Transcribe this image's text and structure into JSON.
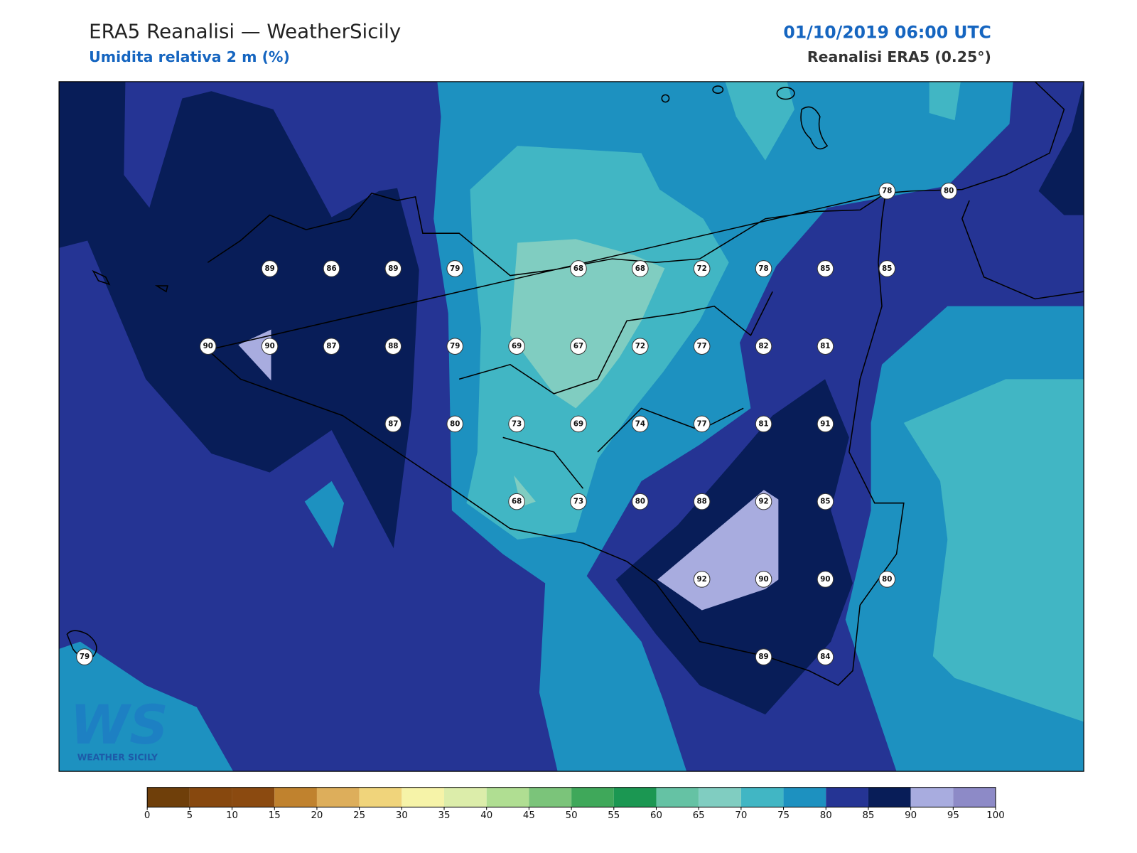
{
  "header": {
    "title": "ERA5 Reanalisi — WeatherSicily",
    "subtitle": "Umidita relativa 2 m (%)",
    "date": "01/10/2019 06:00 UTC",
    "source": "Reanalisi ERA5 (0.25°)"
  },
  "stations": [
    [
      null,
      null,
      null,
      null,
      null,
      null,
      null,
      null,
      null,
      null,
      null,
      null,
      null,
      78,
      80
    ],
    [
      null,
      null,
      null,
      89,
      86,
      89,
      79,
      null,
      68,
      68,
      72,
      78,
      85,
      85,
      null
    ],
    [
      null,
      null,
      90,
      90,
      87,
      88,
      79,
      69,
      67,
      72,
      77,
      82,
      81,
      null,
      null
    ],
    [
      null,
      null,
      null,
      null,
      null,
      87,
      80,
      73,
      69,
      74,
      77,
      81,
      91,
      null,
      null
    ],
    [
      null,
      null,
      null,
      null,
      null,
      null,
      null,
      68,
      73,
      80,
      88,
      92,
      85,
      null,
      null
    ],
    [
      null,
      null,
      null,
      null,
      null,
      null,
      null,
      null,
      null,
      null,
      92,
      90,
      90,
      80,
      null
    ],
    [
      79,
      null,
      null,
      null,
      null,
      null,
      null,
      null,
      null,
      null,
      null,
      89,
      84,
      null,
      null
    ]
  ],
  "colorbar": {
    "ticks": [
      0,
      5,
      10,
      15,
      20,
      25,
      30,
      35,
      40,
      45,
      50,
      55,
      60,
      65,
      70,
      75,
      80,
      85,
      90,
      95,
      100
    ],
    "colors": [
      "#6f3f0a",
      "#87480e",
      "#8b4a10",
      "#c0822e",
      "#ddae5b",
      "#f0d47b",
      "#f6f3a8",
      "#dcedaa",
      "#b0de92",
      "#7bc47a",
      "#3fa85a",
      "#1b9752",
      "#65c2a4",
      "#80cdc1",
      "#41b6c4",
      "#1d91c0",
      "#253494",
      "#081d58",
      "#a8acdf",
      "#8d8ac7"
    ]
  },
  "logo": {
    "letters": "WS",
    "name": "WEATHER SICILY"
  }
}
